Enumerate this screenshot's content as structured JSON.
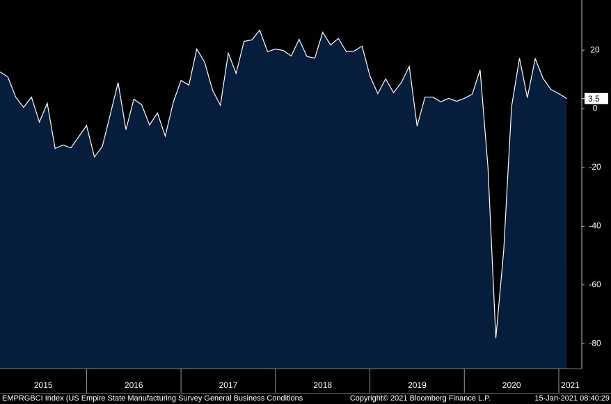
{
  "chart_data": {
    "type": "area",
    "title": "EMPRGBCI Index (US Empire State Manufacturing Survey General Business Conditions",
    "copyright": "Copyright© 2021 Bloomberg Finance L.P.",
    "timestamp": "15-Jan-2021 08:40:29",
    "xticks": [
      2015,
      2016,
      2017,
      2018,
      2019,
      2020,
      2021
    ],
    "values": [
      12.6,
      10.9,
      4.0,
      0.5,
      4.0,
      -4.5,
      1.9,
      -13.5,
      -12.3,
      -13.3,
      -9.5,
      -5.7,
      -16.4,
      -12.8,
      -2.1,
      9.0,
      -7.1,
      3.3,
      1.4,
      -5.5,
      -1.4,
      -9.3,
      2.1,
      9.7,
      8.1,
      20.4,
      15.9,
      6.4,
      1.2,
      19.0,
      12.1,
      23.0,
      23.5,
      26.8,
      19.5,
      20.4,
      19.9,
      18.0,
      23.7,
      17.8,
      17.3,
      26.1,
      21.8,
      24.0,
      19.5,
      19.7,
      21.4,
      11.2,
      5.2,
      10.2,
      5.5,
      9.0,
      14.5,
      -5.9,
      4.0,
      4.0,
      2.4,
      3.6,
      2.6,
      3.6,
      5.0,
      13.3,
      -19.9,
      -78.2,
      -48.4,
      0.7,
      17.3,
      3.8,
      17.1,
      10.4,
      6.6,
      5.2,
      3.5
    ],
    "color": "#061d3c",
    "line_color": "#ffffff",
    "ylim": [
      -88.5,
      37.1
    ],
    "yticks": [
      20,
      0,
      -20,
      -40,
      -60,
      -80
    ]
  }
}
